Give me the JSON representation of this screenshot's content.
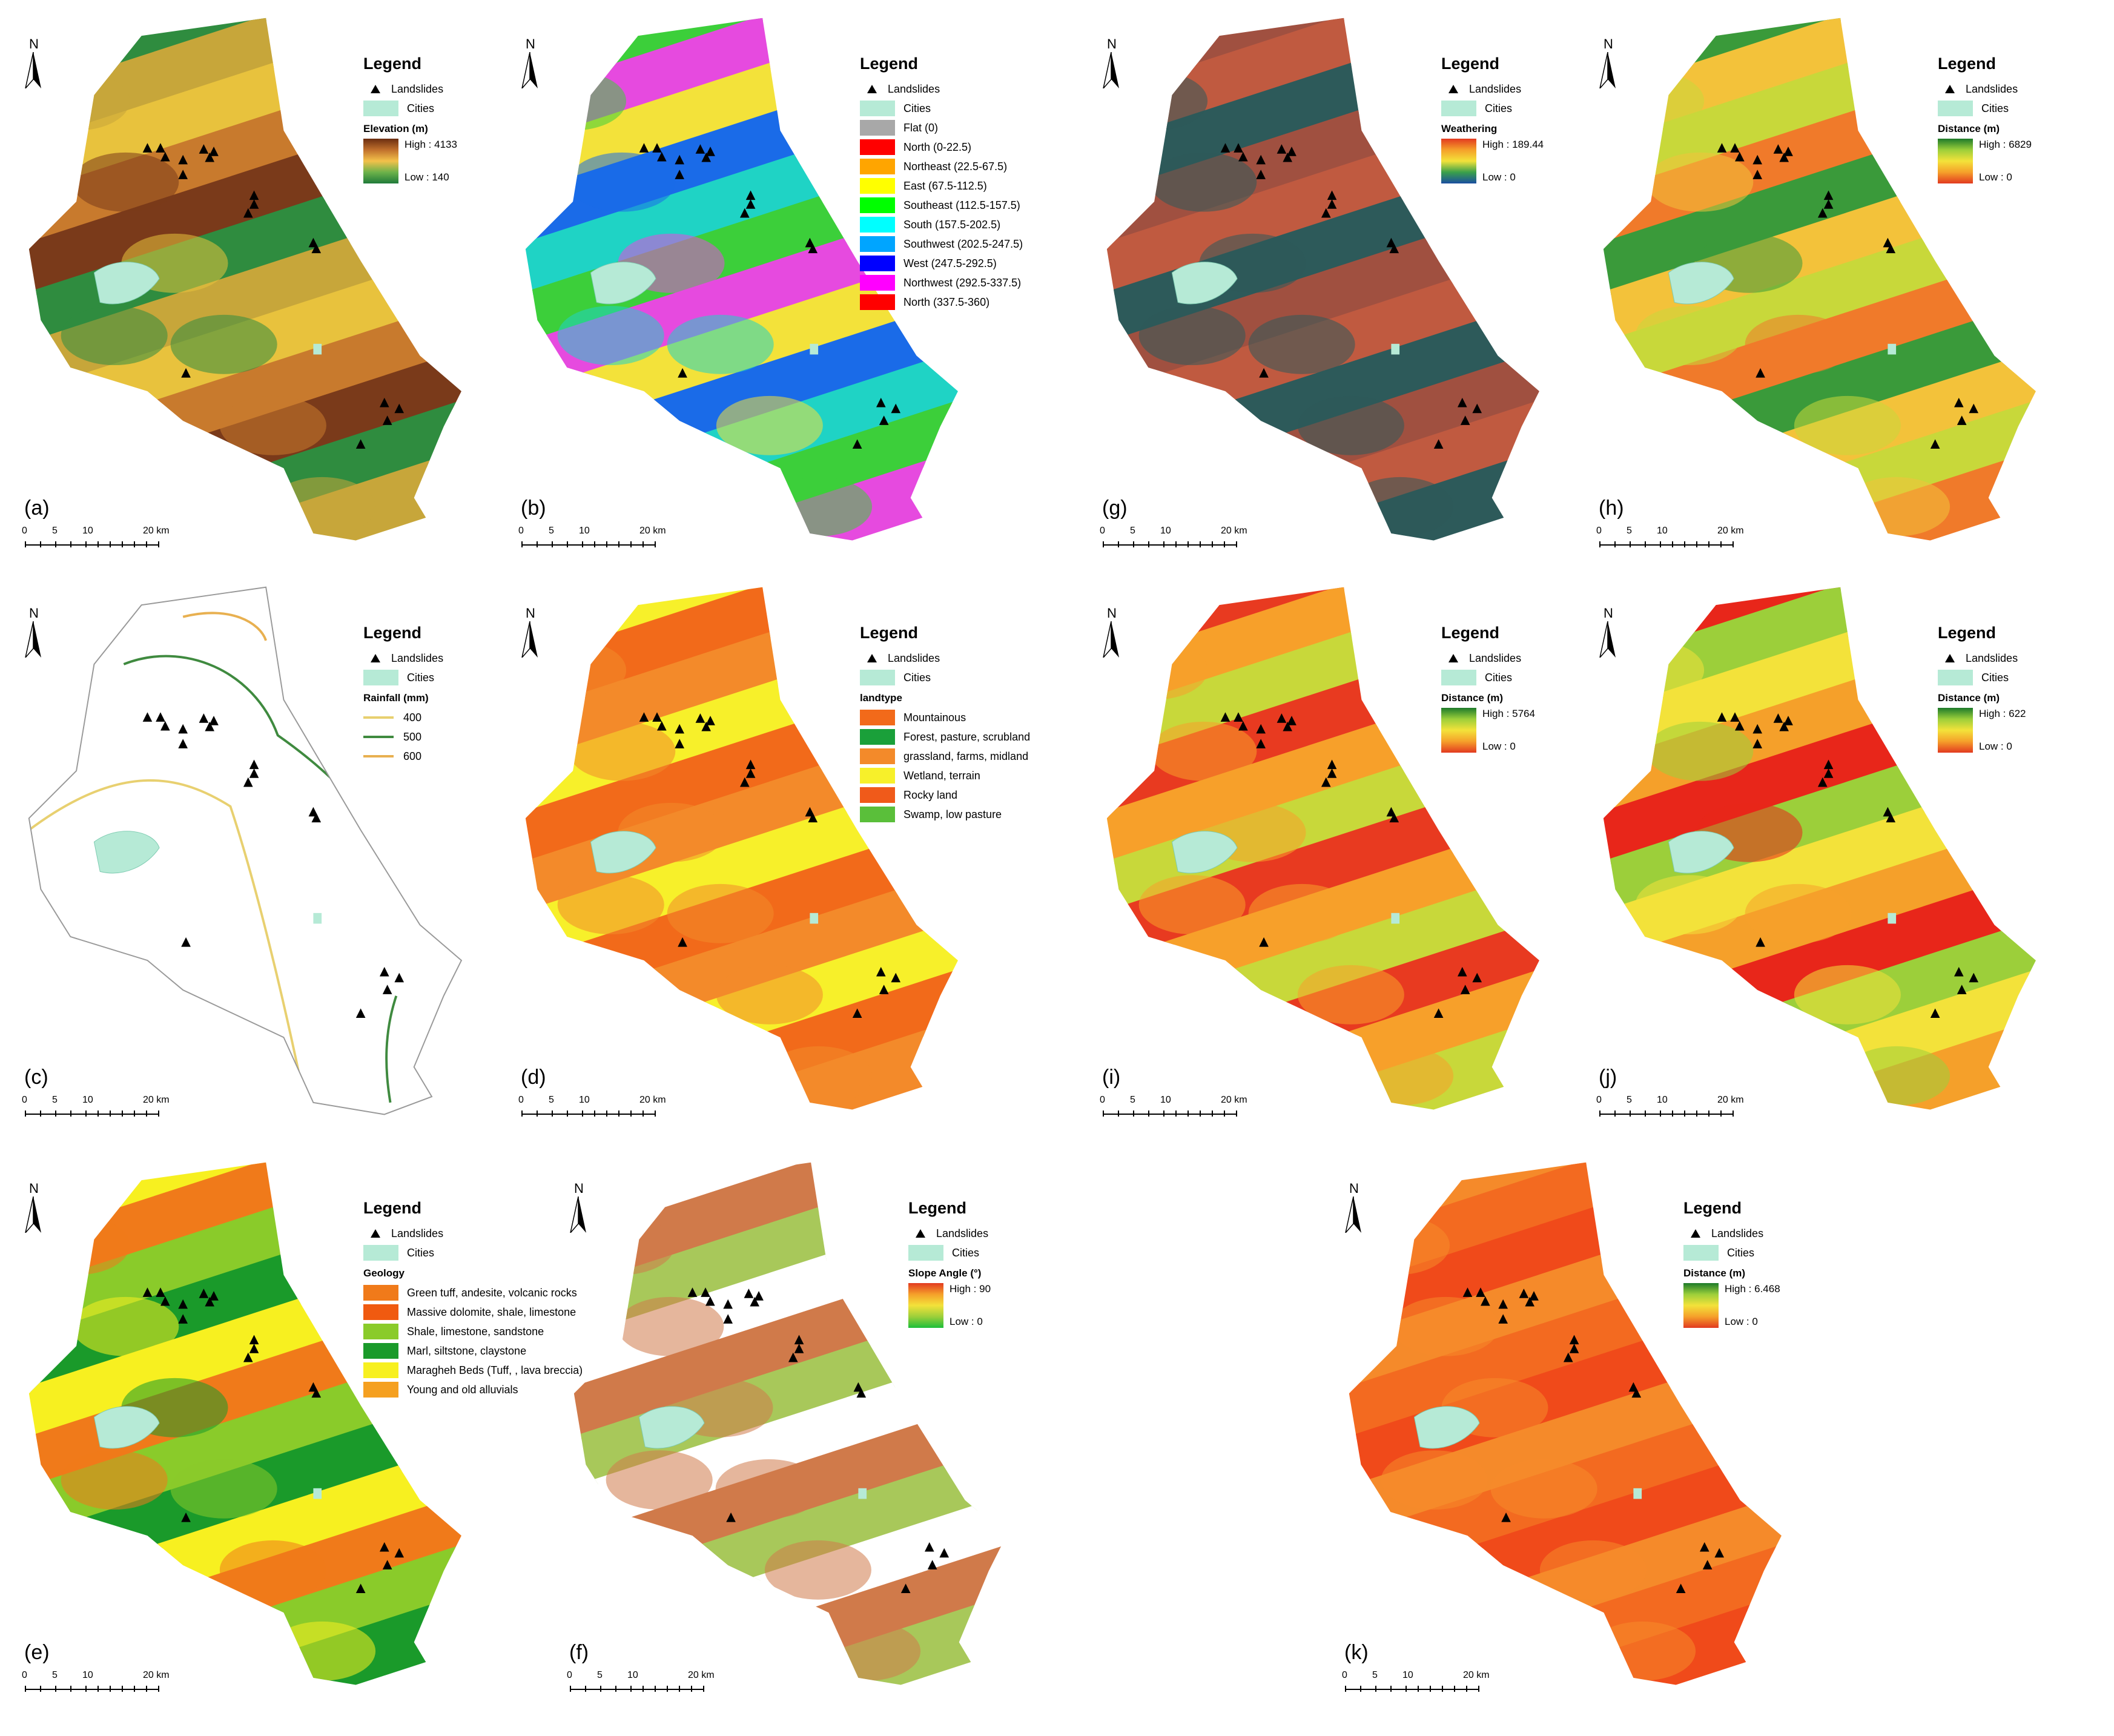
{
  "north_label": "N",
  "scale_ticks": [
    "0",
    "5",
    "10",
    "20 km"
  ],
  "panels": [
    {
      "id": "a",
      "label": "(a)",
      "legend_title": "Legend",
      "landslides": "Landslides",
      "cities": "Cities",
      "layer_title": "Elevation (m)",
      "high": "High : 4133",
      "low": "Low : 140",
      "gradient": [
        "#6b2d10",
        "#c0702c",
        "#f3c14a",
        "#6cb24a",
        "#1f7a3a"
      ],
      "map_colors": [
        "#2f8c3f",
        "#c7a63a",
        "#e8c23d",
        "#c87a2d",
        "#7a3a1a"
      ]
    },
    {
      "id": "b",
      "label": "(b)",
      "legend_title": "Legend",
      "landslides": "Landslides",
      "cities": "Cities",
      "classes": [
        {
          "name": "Flat (0)",
          "color": "#a8a8a8"
        },
        {
          "name": "North (0-22.5)",
          "color": "#ff0000"
        },
        {
          "name": "Northeast (22.5-67.5)",
          "color": "#ffa500"
        },
        {
          "name": "East (67.5-112.5)",
          "color": "#ffff00"
        },
        {
          "name": "Southeast (112.5-157.5)",
          "color": "#00ff00"
        },
        {
          "name": "South (157.5-202.5)",
          "color": "#00ffff"
        },
        {
          "name": "Southwest (202.5-247.5)",
          "color": "#00a5ff"
        },
        {
          "name": "West (247.5-292.5)",
          "color": "#0000ff"
        },
        {
          "name": "Northwest (292.5-337.5)",
          "color": "#ff00ff"
        },
        {
          "name": "North (337.5-360)",
          "color": "#ff0000"
        }
      ],
      "map_colors": [
        "#1fd3c5",
        "#3ccf3a",
        "#e64adf",
        "#f3e23a",
        "#1a6be8"
      ]
    },
    {
      "id": "g",
      "label": "(g)",
      "legend_title": "Legend",
      "landslides": "Landslides",
      "cities": "Cities",
      "layer_title": "Weathering",
      "high": "High : 189.44",
      "low": "Low : 0",
      "gradient": [
        "#e23a20",
        "#f5a02a",
        "#f3e23a",
        "#3aa04a",
        "#1a4ea0"
      ],
      "map_colors": [
        "#c05a40",
        "#2d5a5a",
        "#a05040"
      ]
    },
    {
      "id": "h",
      "label": "(h)",
      "legend_title": "Legend",
      "landslides": "Landslides",
      "cities": "Cities",
      "layer_title": "Distance (m)",
      "high": "High : 6829",
      "low": "Low : 0",
      "gradient": [
        "#1d7a2a",
        "#9ccf3a",
        "#f3e23a",
        "#f5a02a",
        "#e23a20"
      ],
      "map_colors": [
        "#f3c23a",
        "#c8d83a",
        "#f07a2a",
        "#3a9a3a"
      ]
    },
    {
      "id": "c",
      "label": "(c)",
      "legend_title": "Legend",
      "landslides": "Landslides",
      "cities": "Cities",
      "layer_title": "Rainfall (mm)",
      "lines": [
        {
          "name": "400",
          "color": "#e8d070"
        },
        {
          "name": "500",
          "color": "#3f8a3f"
        },
        {
          "name": "600",
          "color": "#e8b050"
        }
      ]
    },
    {
      "id": "d",
      "label": "(d)",
      "legend_title": "Legend",
      "landslides": "Landslides",
      "cities": "Cities",
      "layer_title": "landtype",
      "classes": [
        {
          "name": "Mountainous",
          "color": "#f26a1a"
        },
        {
          "name": "Forest, pasture, scrubland",
          "color": "#1aa03a"
        },
        {
          "name": "grassland, farms, midland",
          "color": "#f38a2a"
        },
        {
          "name": "Wetland, terrain",
          "color": "#f7f02a"
        },
        {
          "name": "Rocky land",
          "color": "#f05a1a"
        },
        {
          "name": "Swamp, low pasture",
          "color": "#5abf3a"
        }
      ],
      "map_colors": [
        "#f26a1a",
        "#f38a2a",
        "#f7f02a"
      ]
    },
    {
      "id": "i",
      "label": "(i)",
      "legend_title": "Legend",
      "landslides": "Landslides",
      "cities": "Cities",
      "layer_title": "Distance (m)",
      "high": "High : 5764",
      "low": "Low : 0",
      "gradient": [
        "#1d7a2a",
        "#9ccf3a",
        "#f3e23a",
        "#f5a02a",
        "#e23a20"
      ],
      "map_colors": [
        "#e83a20",
        "#f7a02a",
        "#c8d83a"
      ]
    },
    {
      "id": "j",
      "label": "(j)",
      "legend_title": "Legend",
      "landslides": "Landslides",
      "cities": "Cities",
      "layer_title": "Distance (m)",
      "high": "High : 622",
      "low": "Low : 0",
      "gradient": [
        "#1d7a2a",
        "#9ccf3a",
        "#f3e23a",
        "#f5a02a",
        "#e23a20"
      ],
      "map_colors": [
        "#9ccf3a",
        "#f3e23a",
        "#f5a02a",
        "#e8261a"
      ]
    },
    {
      "id": "e",
      "label": "(e)",
      "legend_title": "Legend",
      "landslides": "Landslides",
      "cities": "Cities",
      "layer_title": "Geology",
      "classes": [
        {
          "name": "Green tuff, andesite, volcanic rocks",
          "color": "#f07a1a"
        },
        {
          "name": "Massive dolomite, shale, limestone",
          "color": "#f05a10"
        },
        {
          "name": "Shale, limestone, sandstone",
          "color": "#8acb2a"
        },
        {
          "name": "Marl, siltstone, claystone",
          "color": "#1a9a2a"
        },
        {
          "name": "Maragheh Beds (Tuff, , lava breccia)",
          "color": "#f7f020"
        },
        {
          "name": "Young and old alluvials",
          "color": "#f5a020"
        }
      ],
      "map_colors": [
        "#f7f020",
        "#f07a1a",
        "#8acb2a",
        "#1a9a2a"
      ]
    },
    {
      "id": "f",
      "label": "(f)",
      "legend_title": "Legend",
      "landslides": "Landslides",
      "cities": "Cities",
      "layer_title": "Slope Angle (°)",
      "high": "High : 90",
      "low": "Low : 0",
      "gradient": [
        "#e23a20",
        "#f5a02a",
        "#f3e23a",
        "#9ccf3a",
        "#1dbf3a"
      ],
      "map_colors": [
        "#ffffff",
        "#d07a4a",
        "#a8c85a"
      ]
    },
    {
      "id": "k",
      "label": "(k)",
      "legend_title": "Legend",
      "landslides": "Landslides",
      "cities": "Cities",
      "layer_title": "Distance (m)",
      "high": "High : 6.468",
      "low": "Low : 0",
      "gradient": [
        "#1d7a2a",
        "#9ccf3a",
        "#f3e23a",
        "#f5a02a",
        "#e23a20"
      ],
      "map_colors": [
        "#f04a1a",
        "#f58a2a",
        "#f36a20"
      ]
    }
  ]
}
